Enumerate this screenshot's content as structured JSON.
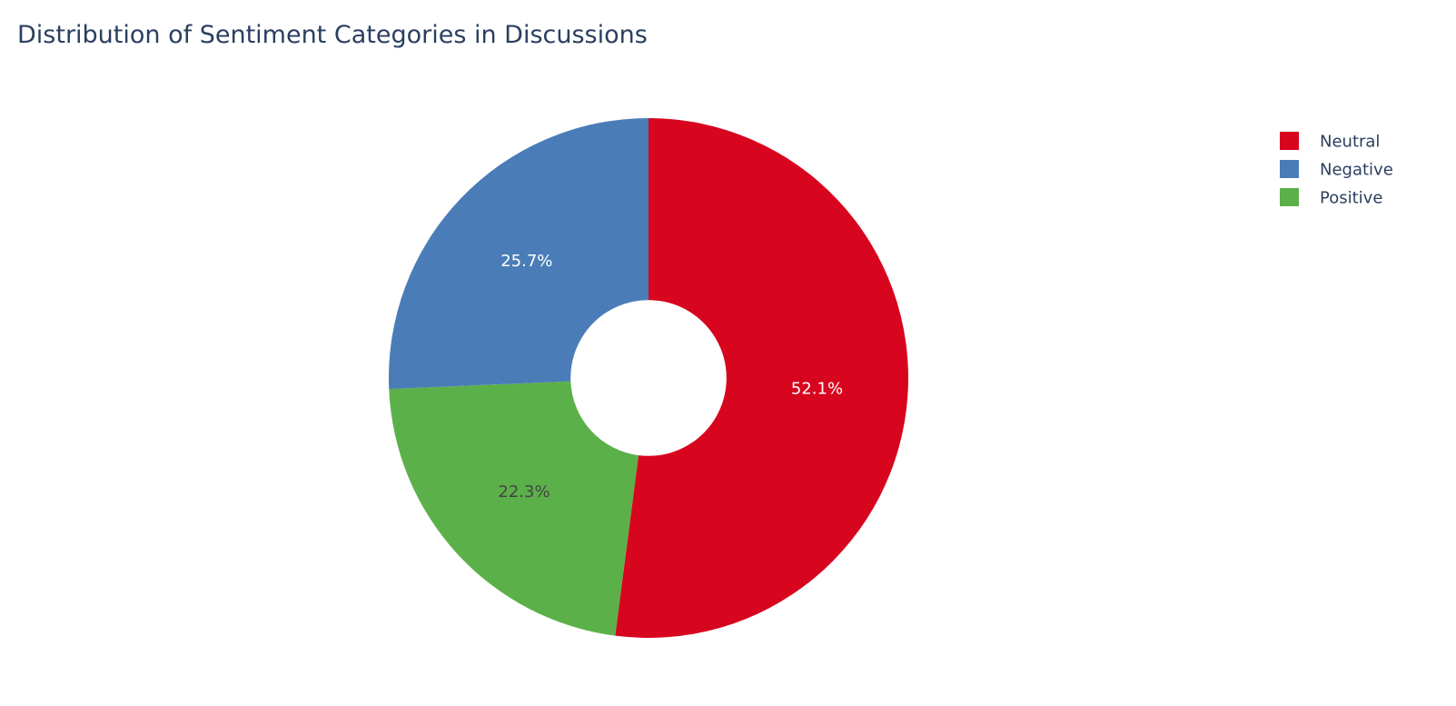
{
  "chart_data": {
    "type": "pie",
    "title": "Distribution of Sentiment Categories in Discussions",
    "hole": 0.3,
    "direction": "clockwise",
    "legend_position": "top-right",
    "slices": [
      {
        "label": "Neutral",
        "percent": 52.1,
        "percent_label": "52.1%",
        "color": "#d7051e",
        "text_color": "#ffffff"
      },
      {
        "label": "Positive",
        "percent": 22.3,
        "percent_label": "22.3%",
        "color": "#5cb04a",
        "text_color": "#444444"
      },
      {
        "label": "Negative",
        "percent": 25.7,
        "percent_label": "25.7%",
        "color": "#4a7db8",
        "text_color": "#ffffff"
      }
    ],
    "legend": [
      {
        "label": "Neutral",
        "color": "#d7051e"
      },
      {
        "label": "Negative",
        "color": "#4a7db8"
      },
      {
        "label": "Positive",
        "color": "#5cb04a"
      }
    ]
  }
}
